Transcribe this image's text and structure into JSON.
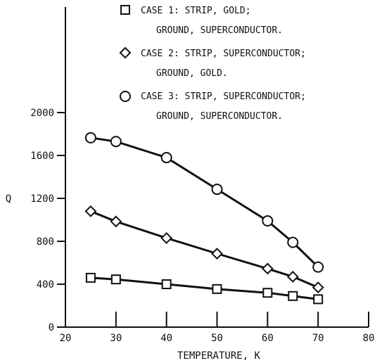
{
  "chart_data": {
    "type": "line",
    "xlabel": "TEMPERATURE, K",
    "ylabel": "Q",
    "xlim": [
      20,
      80
    ],
    "ylim": [
      0,
      2000
    ],
    "x_ticks": [
      "20",
      "30",
      "40",
      "50",
      "60",
      "70",
      "80"
    ],
    "y_ticks": [
      "0",
      "400",
      "800",
      "1200",
      "1600",
      "2000"
    ],
    "grid": false,
    "legend_position": "top",
    "legend": [
      {
        "marker": "square",
        "line1": "CASE 1: STRIP, GOLD;",
        "line2": "GROUND, SUPERCONDUCTOR."
      },
      {
        "marker": "diamond",
        "line1": "CASE 2: STRIP, SUPERCONDUCTOR;",
        "line2": "GROUND, GOLD."
      },
      {
        "marker": "circle",
        "line1": "CASE 3: STRIP, SUPERCONDUCTOR;",
        "line2": "GROUND, SUPERCONDUCTOR."
      }
    ],
    "series": [
      {
        "marker": "square",
        "x": [
          25,
          30,
          40,
          50,
          60,
          65,
          70
        ],
        "values": [
          460,
          445,
          400,
          355,
          320,
          290,
          260
        ]
      },
      {
        "marker": "diamond",
        "x": [
          25,
          30,
          40,
          50,
          60,
          65,
          70
        ],
        "values": [
          1080,
          985,
          830,
          685,
          545,
          470,
          370
        ]
      },
      {
        "marker": "circle",
        "x": [
          25,
          30,
          40,
          50,
          60,
          65,
          70
        ],
        "values": [
          1765,
          1730,
          1580,
          1285,
          990,
          790,
          560
        ]
      }
    ]
  },
  "colors": {
    "ink": "#111111",
    "background": "#ffffff"
  }
}
